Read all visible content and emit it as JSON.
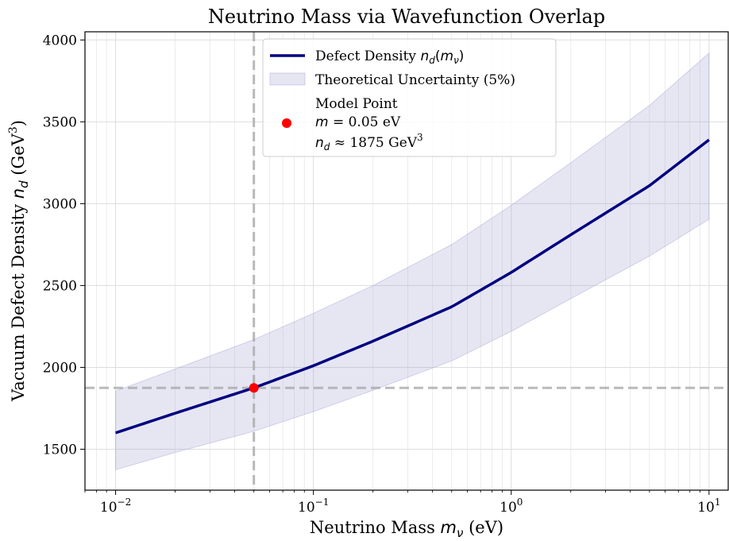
{
  "chart_data": {
    "type": "line",
    "title": "Neutrino Mass via Wavefunction Overlap",
    "xlabel": {
      "text": "Neutrino Mass ",
      "math": "m",
      "sub": "ν",
      "unit": " (eV)"
    },
    "ylabel": {
      "text": "Vacuum Defect Density ",
      "math": "n",
      "sub": "d",
      "unit_pre": " (GeV",
      "sup": "3",
      "unit_post": ")"
    },
    "x_scale": "log",
    "xlim": [
      0.007,
      12.5
    ],
    "ylim": [
      1250,
      4050
    ],
    "x_ticks": [
      {
        "value": 0.01,
        "base": "10",
        "exp": "−2"
      },
      {
        "value": 0.1,
        "base": "10",
        "exp": "−1"
      },
      {
        "value": 1,
        "base": "10",
        "exp": "0"
      },
      {
        "value": 10,
        "base": "10",
        "exp": "1"
      }
    ],
    "y_ticks": [
      1500,
      2000,
      2500,
      3000,
      3500,
      4000
    ],
    "grid": true,
    "series": [
      {
        "name": "Defect Density",
        "name_math": "n",
        "name_sub": "d",
        "name_arg": "m",
        "name_arg_sub": "ν",
        "color": "#000080",
        "x": [
          0.01,
          0.02,
          0.05,
          0.1,
          0.2,
          0.5,
          1,
          2,
          5,
          10
        ],
        "y": [
          1600,
          1720,
          1875,
          2010,
          2160,
          2370,
          2580,
          2810,
          3110,
          3390
        ]
      }
    ],
    "band": {
      "name": "Theoretical Uncertainty (5%)",
      "color": "#9c9ccf",
      "x": [
        0.01,
        0.02,
        0.05,
        0.1,
        0.2,
        0.5,
        1,
        2,
        5,
        10
      ],
      "lower": [
        1375,
        1480,
        1610,
        1730,
        1860,
        2040,
        2220,
        2420,
        2680,
        2905
      ],
      "upper": [
        1855,
        1990,
        2170,
        2330,
        2500,
        2750,
        2990,
        3250,
        3600,
        3920
      ]
    },
    "point": {
      "label_line1": "Model Point",
      "label_line2_math": "m",
      "label_line2": " = 0.05 eV",
      "label_line3_math": "n",
      "label_line3_sub": "d",
      "label_line3": " ≈ 1875 GeV",
      "label_line3_sup": "3",
      "x": 0.05,
      "y": 1875,
      "color": "#ff0000"
    },
    "reference_lines": {
      "x": 0.05,
      "y": 1875,
      "style": "dashed",
      "color": "#a9a9a9"
    },
    "legend_position": "upper center"
  }
}
